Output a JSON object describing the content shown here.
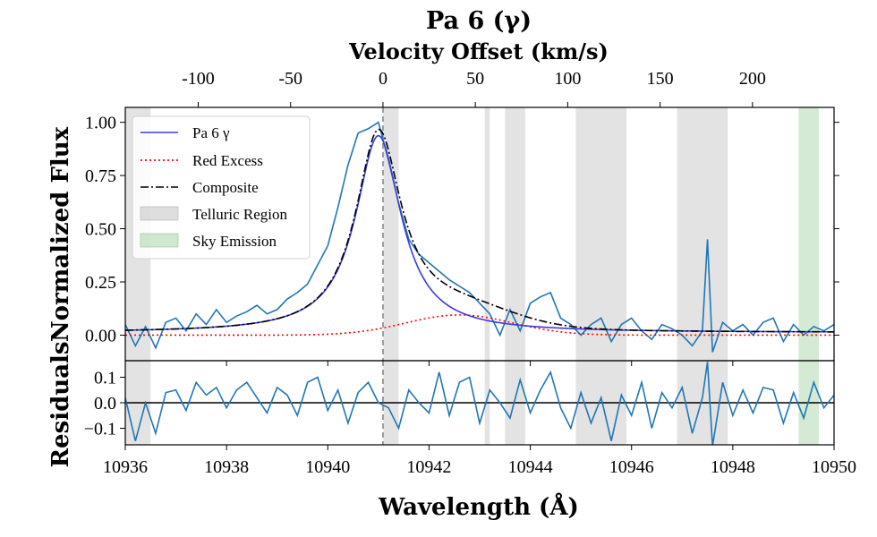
{
  "chart_data": {
    "type": "line",
    "title": "Pa 6 (γ)",
    "top_axis_label": "Velocity Offset (km/s)",
    "xlabel": "Wavelength (Å)",
    "ylabel_main": "Normalized Flux",
    "ylabel_resid": "Residuals",
    "xlim": [
      10936,
      10950
    ],
    "ylim_main": [
      -0.12,
      1.07
    ],
    "ylim_resid": [
      -0.165,
      0.165
    ],
    "x_ticks": [
      "10936",
      "10938",
      "10940",
      "10942",
      "10944",
      "10946",
      "10948",
      "10950"
    ],
    "y_ticks_main": [
      "0.00",
      "0.25",
      "0.50",
      "0.75",
      "1.00"
    ],
    "y_ticks_resid": [
      "−0.1",
      "0.0",
      "0.1"
    ],
    "top_ticks": [
      "-100",
      "-50",
      "0",
      "50",
      "100",
      "150",
      "200"
    ],
    "top_tick_velocities": [
      -100,
      -50,
      0,
      50,
      100,
      150,
      200
    ],
    "rest_wavelength": 10941.09,
    "telluric_regions": [
      [
        10936.0,
        10936.5
      ],
      [
        10941.1,
        10941.4
      ],
      [
        10943.1,
        10943.2
      ],
      [
        10943.5,
        10943.9
      ],
      [
        10944.9,
        10945.9
      ],
      [
        10946.9,
        10947.9
      ]
    ],
    "sky_regions": [
      [
        10949.3,
        10949.7
      ]
    ],
    "legend": [
      {
        "label": "Pa 6 γ",
        "style": "solid",
        "color": "#3b3bdb"
      },
      {
        "label": "Red Excess",
        "style": "dotted",
        "color": "#ff0000"
      },
      {
        "label": "Composite",
        "style": "dashdot",
        "color": "#000000"
      },
      {
        "label": "Telluric Region",
        "style": "patch",
        "color": "#c8c8c8"
      },
      {
        "label": "Sky Emission",
        "style": "patch",
        "color": "#a9d6a9"
      }
    ],
    "model": {
      "pa6_center": 10941.0,
      "pa6_amp": 0.925,
      "pa6_hwhm": 0.55,
      "pa6_base": 0.012,
      "red_center": 10942.6,
      "red_amp": 0.095,
      "red_sigma": 1.05
    },
    "series": [
      {
        "name": "Data",
        "color": "#1f77b4",
        "x": [
          10936.0,
          10936.2,
          10936.4,
          10936.6,
          10936.8,
          10937.0,
          10937.2,
          10937.4,
          10937.6,
          10937.8,
          10938.0,
          10938.2,
          10938.4,
          10938.6,
          10938.8,
          10939.0,
          10939.2,
          10939.4,
          10939.6,
          10939.8,
          10940.0,
          10940.2,
          10940.4,
          10940.6,
          10940.8,
          10941.0,
          10941.2,
          10941.4,
          10941.6,
          10941.8,
          10942.0,
          10942.2,
          10942.4,
          10942.6,
          10942.8,
          10943.0,
          10943.2,
          10943.4,
          10943.6,
          10943.8,
          10944.0,
          10944.2,
          10944.4,
          10944.6,
          10944.8,
          10945.0,
          10945.2,
          10945.4,
          10945.6,
          10945.8,
          10946.0,
          10946.2,
          10946.4,
          10946.6,
          10946.8,
          10947.0,
          10947.2,
          10947.4,
          10947.5,
          10947.6,
          10947.8,
          10948.0,
          10948.2,
          10948.4,
          10948.6,
          10948.8,
          10949.0,
          10949.2,
          10949.4,
          10949.6,
          10949.8,
          10950.0
        ],
        "y": [
          0.05,
          -0.05,
          0.04,
          -0.06,
          0.06,
          0.08,
          0.02,
          0.1,
          0.05,
          0.12,
          0.06,
          0.09,
          0.11,
          0.14,
          0.1,
          0.12,
          0.17,
          0.2,
          0.24,
          0.33,
          0.42,
          0.6,
          0.8,
          0.95,
          0.97,
          1.0,
          0.82,
          0.62,
          0.45,
          0.38,
          0.34,
          0.3,
          0.26,
          0.23,
          0.2,
          0.15,
          0.1,
          0.0,
          0.12,
          0.02,
          0.15,
          0.18,
          0.2,
          0.08,
          0.05,
          0.0,
          0.05,
          0.08,
          -0.03,
          0.05,
          0.08,
          0.02,
          -0.02,
          0.05,
          0.03,
          0.0,
          -0.05,
          0.02,
          0.45,
          -0.08,
          0.06,
          0.02,
          0.05,
          0.0,
          0.06,
          0.08,
          -0.03,
          0.05,
          0.0,
          0.04,
          0.02,
          0.05
        ]
      },
      {
        "name": "Residuals",
        "color": "#1f77b4",
        "x": [
          10936.0,
          10936.2,
          10936.4,
          10936.6,
          10936.8,
          10937.0,
          10937.2,
          10937.4,
          10937.6,
          10937.8,
          10938.0,
          10938.2,
          10938.4,
          10938.6,
          10938.8,
          10939.0,
          10939.2,
          10939.4,
          10939.6,
          10939.8,
          10940.0,
          10940.2,
          10940.4,
          10940.6,
          10940.8,
          10941.0,
          10941.2,
          10941.4,
          10941.6,
          10941.8,
          10942.0,
          10942.2,
          10942.4,
          10942.6,
          10942.8,
          10943.0,
          10943.2,
          10943.4,
          10943.6,
          10943.8,
          10944.0,
          10944.2,
          10944.4,
          10944.6,
          10944.8,
          10945.0,
          10945.2,
          10945.4,
          10945.6,
          10945.8,
          10946.0,
          10946.2,
          10946.4,
          10946.6,
          10946.8,
          10947.0,
          10947.2,
          10947.4,
          10947.5,
          10947.6,
          10947.8,
          10948.0,
          10948.2,
          10948.4,
          10948.6,
          10948.8,
          10949.0,
          10949.2,
          10949.4,
          10949.6,
          10949.8,
          10950.0
        ],
        "y": [
          0.02,
          -0.15,
          0.0,
          -0.12,
          0.04,
          0.05,
          -0.03,
          0.08,
          0.03,
          0.06,
          -0.02,
          0.05,
          0.08,
          0.02,
          -0.04,
          0.06,
          0.03,
          -0.05,
          0.08,
          0.1,
          -0.03,
          0.05,
          -0.08,
          0.04,
          0.08,
          0.0,
          -0.02,
          -0.1,
          0.05,
          0.0,
          -0.04,
          0.12,
          -0.05,
          0.08,
          0.1,
          -0.08,
          0.05,
          0.0,
          -0.06,
          0.09,
          -0.04,
          0.05,
          0.12,
          -0.02,
          -0.1,
          0.04,
          -0.08,
          0.02,
          -0.15,
          0.03,
          -0.05,
          0.08,
          -0.1,
          0.04,
          -0.02,
          0.06,
          -0.12,
          0.02,
          0.16,
          -0.17,
          0.08,
          -0.05,
          0.05,
          -0.04,
          0.06,
          0.05,
          -0.08,
          0.04,
          -0.06,
          0.08,
          -0.02,
          0.03
        ]
      }
    ]
  }
}
